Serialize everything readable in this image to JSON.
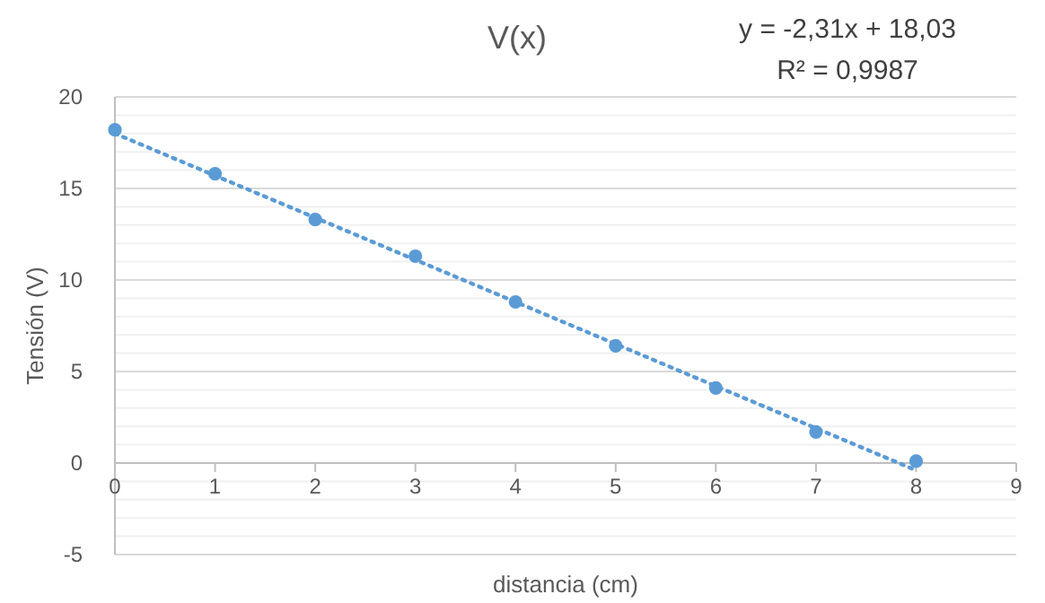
{
  "chart_data": {
    "type": "scatter",
    "title": "V(x)",
    "xlabel": "distancia (cm)",
    "ylabel": "Tensión (V)",
    "annotations": [
      "y = -2,31x + 18,03",
      "R² = 0,9987"
    ],
    "xlim": [
      0,
      9
    ],
    "xticks": [
      0,
      1,
      2,
      3,
      4,
      5,
      6,
      7,
      8,
      9
    ],
    "ylim": [
      -5,
      20
    ],
    "yticks": [
      -5,
      {
        "value": -4,
        "label": null
      },
      {
        "value": -3,
        "label": null
      },
      {
        "value": -2,
        "label": null
      },
      {
        "value": -1,
        "label": null
      },
      0,
      {
        "value": 1,
        "label": null
      },
      {
        "value": 2,
        "label": null
      },
      {
        "value": 3,
        "label": null
      },
      {
        "value": 4,
        "label": null
      },
      5,
      {
        "value": 6,
        "label": null
      },
      {
        "value": 7,
        "label": null
      },
      {
        "value": 8,
        "label": null
      },
      {
        "value": 9,
        "label": null
      },
      10,
      {
        "value": 11,
        "label": null
      },
      {
        "value": 12,
        "label": null
      },
      {
        "value": 13,
        "label": null
      },
      {
        "value": 14,
        "label": null
      },
      15,
      {
        "value": 16,
        "label": null
      },
      {
        "value": 17,
        "label": null
      },
      {
        "value": 18,
        "label": null
      },
      {
        "value": 19,
        "label": null
      },
      20
    ],
    "grid": "y",
    "series": [
      {
        "marker": "circle",
        "color": "#5b9bd5",
        "x": [
          0,
          1,
          2,
          3,
          4,
          5,
          6,
          7,
          8
        ],
        "values": [
          18.2,
          15.8,
          13.3,
          11.3,
          8.8,
          6.4,
          4.1,
          1.7,
          0.1
        ]
      },
      {
        "type": "line",
        "color": "#5b9bd5",
        "marker": "none",
        "line_style": "dotted",
        "x": [
          0,
          8
        ],
        "values": [
          18.0,
          -0.4
        ]
      }
    ]
  }
}
